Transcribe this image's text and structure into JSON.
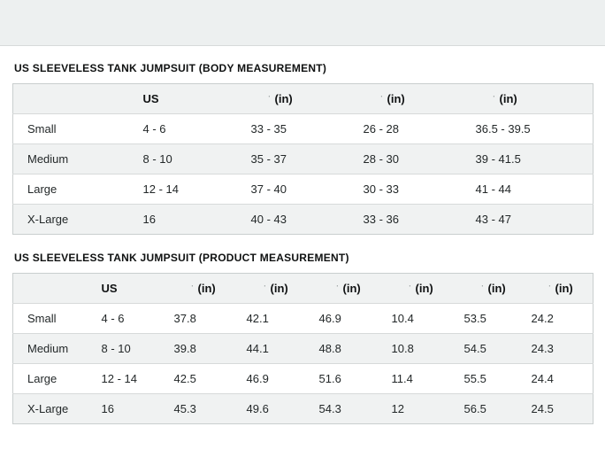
{
  "page": {
    "background": "#ffffff",
    "top_band_color": "#edf0f0",
    "stripe_color": "#f0f2f2",
    "border_color": "#d7dada",
    "text_color": "#232829",
    "title_color": "#0f1111"
  },
  "artifacts": {
    "unit_prefix": "ˈ"
  },
  "tables": [
    {
      "title": "US SLEEVELESS TANK JUMPSUIT (BODY MEASUREMENT)",
      "columns": [
        "",
        "US",
        "(in)",
        "(in)",
        "(in)"
      ],
      "rows": [
        [
          "Small",
          "4 - 6",
          "33 - 35",
          "26 - 28",
          "36.5 - 39.5"
        ],
        [
          "Medium",
          "8 - 10",
          "35 - 37",
          "28 - 30",
          "39 - 41.5"
        ],
        [
          "Large",
          "12 - 14",
          "37 - 40",
          "30 - 33",
          "41 - 44"
        ],
        [
          "X-Large",
          "16",
          "40 - 43",
          "33 - 36",
          "43 - 47"
        ]
      ]
    },
    {
      "title": "US SLEEVELESS TANK JUMPSUIT (PRODUCT MEASUREMENT)",
      "columns": [
        "",
        "US",
        "(in)",
        "(in)",
        "(in)",
        "(in)",
        "(in)",
        "(in)"
      ],
      "rows": [
        [
          "Small",
          "4 - 6",
          "37.8",
          "42.1",
          "46.9",
          "10.4",
          "53.5",
          "24.2"
        ],
        [
          "Medium",
          "8 - 10",
          "39.8",
          "44.1",
          "48.8",
          "10.8",
          "54.5",
          "24.3"
        ],
        [
          "Large",
          "12 - 14",
          "42.5",
          "46.9",
          "51.6",
          "11.4",
          "55.5",
          "24.4"
        ],
        [
          "X-Large",
          "16",
          "45.3",
          "49.6",
          "54.3",
          "12",
          "56.5",
          "24.5"
        ]
      ]
    }
  ]
}
